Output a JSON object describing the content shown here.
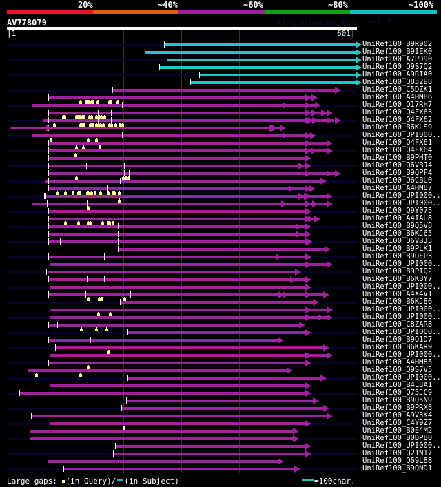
{
  "legend": {
    "labels": [
      "20%",
      "~40%",
      "~60%",
      "~80%",
      "~100%"
    ],
    "colors": [
      "#f0102a",
      "#e0600a",
      "#a020a0",
      "#10a010",
      "#10c0c8"
    ]
  },
  "query": {
    "id": "AV778079",
    "start_label": "|1",
    "end_label": "601|",
    "length": 601
  },
  "watermark": "AlignView.pm Beta rel.7",
  "grid_positions": [
    101,
    201,
    301,
    401,
    501,
    601
  ],
  "colors": {
    "high": "#1ec8c8",
    "mid": "#a020a0",
    "query_gap_marker": "#ffff99",
    "row_background": "#05052a"
  },
  "hits": [
    {
      "name": "UniRef100_B9R902",
      "color": "high",
      "start": 271,
      "end": 601,
      "ticks": [
        271
      ],
      "arrows": [
        601
      ],
      "gaps": []
    },
    {
      "name": "UniRef100_B9IEK0",
      "color": "high",
      "start": 238,
      "end": 601,
      "ticks": [
        238
      ],
      "arrows": [
        601
      ],
      "gaps": []
    },
    {
      "name": "UniRef100_A7PD90",
      "color": "high",
      "start": 276,
      "end": 601,
      "ticks": [
        276
      ],
      "arrows": [
        601
      ],
      "gaps": []
    },
    {
      "name": "UniRef100_Q9S7Q2",
      "color": "high",
      "start": 263,
      "end": 601,
      "ticks": [
        263
      ],
      "arrows": [
        601
      ],
      "gaps": []
    },
    {
      "name": "UniRef100_A9RIA0",
      "color": "high",
      "start": 332,
      "end": 601,
      "ticks": [
        332
      ],
      "arrows": [
        601
      ],
      "gaps": []
    },
    {
      "name": "UniRef100_Q852B8",
      "color": "high",
      "start": 317,
      "end": 601,
      "ticks": [
        317
      ],
      "arrows": [
        601
      ],
      "gaps": []
    },
    {
      "name": "UniRef100_C5DZK1",
      "color": "mid",
      "start": 182,
      "end": 566,
      "ticks": [
        182
      ],
      "arrows": [
        566
      ],
      "gaps": []
    },
    {
      "name": "UniRef100_A4HM86",
      "color": "mid",
      "start": 72,
      "end": 525,
      "ticks": [
        72
      ],
      "arrows": [
        514,
        525
      ],
      "gaps": [
        125,
        135,
        137,
        140,
        145,
        147,
        155,
        175,
        178,
        190
      ]
    },
    {
      "name": "UniRef100_Q17RH7",
      "color": "mid",
      "start": 44,
      "end": 531,
      "ticks": [
        44,
        74,
        199
      ],
      "arrows": [
        475,
        514,
        531
      ],
      "gaps": []
    },
    {
      "name": "UniRef100_Q4FX63",
      "color": "mid",
      "start": 72,
      "end": 551,
      "ticks": [
        72,
        157,
        180
      ],
      "arrows": [
        514,
        525,
        542,
        551
      ],
      "gaps": [
        96,
        98,
        118,
        121,
        124,
        129,
        131,
        141,
        145,
        153,
        158,
        161,
        167
      ]
    },
    {
      "name": "UniRef100_Q4FX62",
      "color": "mid",
      "start": 63,
      "end": 565,
      "ticks": [
        63,
        72,
        157,
        180
      ],
      "arrows": [
        514,
        518,
        526,
        551,
        565
      ],
      "gaps": [
        80,
        126,
        128,
        131,
        142,
        145,
        147,
        153,
        156,
        160,
        165,
        175,
        179,
        186,
        193,
        198
      ]
    },
    {
      "name": "UniRef100_B6KLS9",
      "color": "mid",
      "start": 6,
      "end": 471,
      "ticks": [
        6,
        9,
        72
      ],
      "arrows": [
        68,
        453,
        456,
        471
      ],
      "gaps": []
    },
    {
      "name": "UniRef100_UPI000..",
      "color": "mid",
      "start": 44,
      "end": 523,
      "ticks": [
        44,
        74,
        199
      ],
      "arrows": [
        475,
        514,
        523
      ],
      "gaps": [
        75,
        138,
        153
      ]
    },
    {
      "name": "UniRef100_Q4FX61",
      "color": "mid",
      "start": 72,
      "end": 551,
      "ticks": [
        72
      ],
      "arrows": [
        514,
        551
      ],
      "gaps": [
        118,
        130,
        159
      ]
    },
    {
      "name": "UniRef100_Q4FX64",
      "color": "mid",
      "start": 72,
      "end": 551,
      "ticks": [
        72
      ],
      "arrows": [
        514,
        524,
        551
      ],
      "gaps": [
        117
      ]
    },
    {
      "name": "UniRef100_B9PHT0",
      "color": "mid",
      "start": 72,
      "end": 514,
      "ticks": [
        72
      ],
      "arrows": [
        514
      ],
      "gaps": []
    },
    {
      "name": "UniRef100_Q6VBJ4",
      "color": "mid",
      "start": 72,
      "end": 514,
      "ticks": [
        72,
        86,
        137,
        203
      ],
      "arrows": [
        502,
        514
      ],
      "gaps": []
    },
    {
      "name": "UniRef100_B9QPF4",
      "color": "mid",
      "start": 72,
      "end": 565,
      "ticks": [
        72,
        203,
        211
      ],
      "arrows": [
        514,
        551,
        565
      ],
      "gaps": [
        118,
        199,
        204,
        208
      ]
    },
    {
      "name": "UniRef100_Q6CBU0",
      "color": "mid",
      "start": 66,
      "end": 541,
      "ticks": [
        66,
        72,
        196
      ],
      "arrows": [
        541
      ],
      "gaps": []
    },
    {
      "name": "UniRef100_A4HM87",
      "color": "mid",
      "start": 72,
      "end": 521,
      "ticks": [
        72,
        86,
        174
      ],
      "arrows": [
        486,
        514,
        521
      ],
      "gaps": [
        85,
        99,
        112,
        122,
        123,
        124,
        137,
        138,
        144,
        150,
        160,
        173,
        181,
        184,
        192
      ]
    },
    {
      "name": "UniRef100_UPI000..",
      "color": "mid",
      "start": 65,
      "end": 551,
      "ticks": [
        65,
        67,
        71,
        74
      ],
      "arrows": [
        502,
        512,
        514,
        551
      ],
      "gaps": [
        192
      ]
    },
    {
      "name": "UniRef100_UPI000..",
      "color": "mid",
      "start": 44,
      "end": 551,
      "ticks": [
        44,
        70,
        138,
        178
      ],
      "arrows": [
        473,
        514,
        526,
        551
      ],
      "gaps": [
        139
      ]
    },
    {
      "name": "UniRef100_Q9Y075",
      "color": "mid",
      "start": 72,
      "end": 514,
      "ticks": [
        72
      ],
      "arrows": [
        514
      ],
      "gaps": []
    },
    {
      "name": "UniRef100_A4IAU8",
      "color": "mid",
      "start": 72,
      "end": 530,
      "ticks": [
        72,
        74
      ],
      "arrows": [
        514,
        519,
        530
      ],
      "gaps": [
        99,
        122,
        138,
        142,
        163,
        173,
        175,
        181
      ]
    },
    {
      "name": "UniRef100_B9Q5V8",
      "color": "mid",
      "start": 72,
      "end": 514,
      "ticks": [
        72,
        192
      ],
      "arrows": [
        498,
        514
      ],
      "gaps": []
    },
    {
      "name": "UniRef100_B6KJ65",
      "color": "mid",
      "start": 72,
      "end": 514,
      "ticks": [
        72,
        192
      ],
      "arrows": [
        498,
        514
      ],
      "gaps": []
    },
    {
      "name": "UniRef100_Q6VBJ3",
      "color": "mid",
      "start": 72,
      "end": 517,
      "ticks": [
        72,
        92,
        192
      ],
      "arrows": [
        514,
        517
      ],
      "gaps": []
    },
    {
      "name": "UniRef100_B9PLK1",
      "color": "mid",
      "start": 192,
      "end": 548,
      "ticks": [
        192
      ],
      "arrows": [
        548
      ],
      "gaps": []
    },
    {
      "name": "UniRef100_B9QEP3",
      "color": "mid",
      "start": 72,
      "end": 514,
      "ticks": [
        72,
        168
      ],
      "arrows": [
        464,
        514
      ],
      "gaps": []
    },
    {
      "name": "UniRef100_UPI000..",
      "color": "mid",
      "start": 74,
      "end": 551,
      "ticks": [
        74
      ],
      "arrows": [
        514,
        551
      ],
      "gaps": []
    },
    {
      "name": "UniRef100_B9PIQ2",
      "color": "mid",
      "start": 69,
      "end": 497,
      "ticks": [
        69
      ],
      "arrows": [
        497
      ],
      "gaps": []
    },
    {
      "name": "UniRef100_B6KBY7",
      "color": "mid",
      "start": 72,
      "end": 514,
      "ticks": [
        72,
        139,
        168
      ],
      "arrows": [
        488,
        514
      ],
      "gaps": []
    },
    {
      "name": "UniRef100_UPI000..",
      "color": "mid",
      "start": 74,
      "end": 514,
      "ticks": [
        74
      ],
      "arrows": [
        514
      ],
      "gaps": []
    },
    {
      "name": "UniRef100_A4X4V1",
      "color": "mid",
      "start": 72,
      "end": 545,
      "ticks": [
        72,
        74,
        136,
        213
      ],
      "arrows": [
        468,
        475,
        514,
        545
      ],
      "gaps": [
        139,
        158,
        162,
        201
      ]
    },
    {
      "name": "UniRef100_B6KJ86",
      "color": "mid",
      "start": 195,
      "end": 528,
      "ticks": [
        195
      ],
      "arrows": [
        528
      ],
      "gaps": []
    },
    {
      "name": "UniRef100_UPI000..",
      "color": "mid",
      "start": 74,
      "end": 551,
      "ticks": [
        74
      ],
      "arrows": [
        514,
        551
      ],
      "gaps": [
        156,
        176
      ]
    },
    {
      "name": "UniRef100_UPI000..",
      "color": "mid",
      "start": 74,
      "end": 551,
      "ticks": [
        74
      ],
      "arrows": [
        514,
        536,
        551
      ],
      "gaps": []
    },
    {
      "name": "UniRef100_C8ZAR8",
      "color": "mid",
      "start": 72,
      "end": 504,
      "ticks": [
        72,
        87
      ],
      "arrows": [
        504
      ],
      "gaps": [
        127,
        153,
        170
      ]
    },
    {
      "name": "UniRef100_UPI000..",
      "color": "mid",
      "start": 209,
      "end": 514,
      "ticks": [
        209
      ],
      "arrows": [
        514
      ],
      "gaps": []
    },
    {
      "name": "UniRef100_B9Q1D7",
      "color": "mid",
      "start": 72,
      "end": 467,
      "ticks": [
        72,
        145
      ],
      "arrows": [
        467
      ],
      "gaps": []
    },
    {
      "name": "UniRef100_B6KAR9",
      "color": "mid",
      "start": 84,
      "end": 545,
      "ticks": [
        84
      ],
      "arrows": [
        545
      ],
      "gaps": [
        174
      ]
    },
    {
      "name": "UniRef100_UPI000..",
      "color": "mid",
      "start": 74,
      "end": 551,
      "ticks": [
        74
      ],
      "arrows": [
        514,
        551
      ],
      "gaps": []
    },
    {
      "name": "UniRef100_A4HM85",
      "color": "mid",
      "start": 72,
      "end": 514,
      "ticks": [
        72
      ],
      "arrows": [
        514
      ],
      "gaps": [
        139
      ]
    },
    {
      "name": "UniRef100_Q9S7V5",
      "color": "mid",
      "start": 36,
      "end": 482,
      "ticks": [
        36
      ],
      "arrows": [
        482
      ],
      "gaps": [
        50,
        125
      ]
    },
    {
      "name": "UniRef100_UPI000..",
      "color": "mid",
      "start": 209,
      "end": 540,
      "ticks": [
        209
      ],
      "arrows": [
        540
      ],
      "gaps": []
    },
    {
      "name": "UniRef100_B4L8A1",
      "color": "mid",
      "start": 74,
      "end": 514,
      "ticks": [
        74
      ],
      "arrows": [
        514
      ],
      "gaps": []
    },
    {
      "name": "UniRef100_Q75JC9",
      "color": "mid",
      "start": 22,
      "end": 514,
      "ticks": [
        22
      ],
      "arrows": [
        514
      ],
      "gaps": []
    },
    {
      "name": "UniRef100_B9Q5N9",
      "color": "mid",
      "start": 206,
      "end": 528,
      "ticks": [
        206
      ],
      "arrows": [
        528
      ],
      "gaps": []
    },
    {
      "name": "UniRef100_B9PRX8",
      "color": "mid",
      "start": 198,
      "end": 545,
      "ticks": [
        198
      ],
      "arrows": [
        545
      ],
      "gaps": []
    },
    {
      "name": "UniRef100_A9V3K4",
      "color": "mid",
      "start": 42,
      "end": 551,
      "ticks": [
        42
      ],
      "arrows": [
        551
      ],
      "gaps": []
    },
    {
      "name": "UniRef100_C4Y9Z7",
      "color": "mid",
      "start": 74,
      "end": 514,
      "ticks": [
        74
      ],
      "arrows": [
        514
      ],
      "gaps": [
        200
      ]
    },
    {
      "name": "UniRef100_B0E4M2",
      "color": "mid",
      "start": 40,
      "end": 493,
      "ticks": [
        40
      ],
      "arrows": [
        493
      ],
      "gaps": []
    },
    {
      "name": "UniRef100_B0DP80",
      "color": "mid",
      "start": 40,
      "end": 493,
      "ticks": [
        40
      ],
      "arrows": [
        493
      ],
      "gaps": []
    },
    {
      "name": "UniRef100_UPI000..",
      "color": "mid",
      "start": 187,
      "end": 514,
      "ticks": [
        187
      ],
      "arrows": [
        514
      ],
      "gaps": []
    },
    {
      "name": "UniRef100_Q21N17",
      "color": "mid",
      "start": 184,
      "end": 514,
      "ticks": [
        184
      ],
      "arrows": [
        514
      ],
      "gaps": []
    },
    {
      "name": "UniRef100_Q69L88",
      "color": "mid",
      "start": 71,
      "end": 467,
      "ticks": [
        71
      ],
      "arrows": [
        467
      ],
      "gaps": []
    },
    {
      "name": "UniRef100_B9QND1",
      "color": "mid",
      "start": 98,
      "end": 496,
      "ticks": [
        98
      ],
      "arrows": [
        496
      ],
      "gaps": []
    }
  ],
  "footer": {
    "gaps_label": "Large gaps:",
    "query_text": "(in Query)/",
    "subject_text": "(in Subject)",
    "scale_text": "=100char."
  }
}
